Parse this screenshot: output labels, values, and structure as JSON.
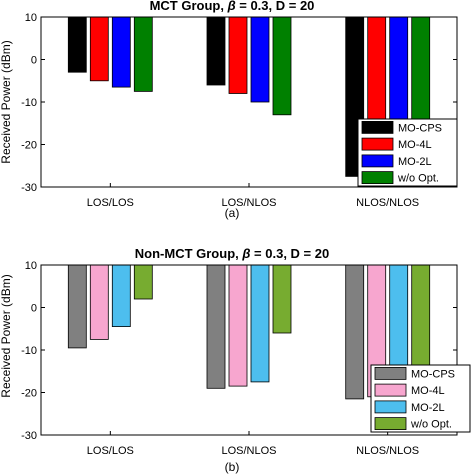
{
  "chart_data": [
    {
      "type": "bar",
      "title": "MCT Group, β = 0.3, D = 20",
      "title_parts": [
        "MCT Group, ",
        "β",
        " = 0.3, D = 20"
      ],
      "caption": "(a)",
      "ylabel": "Received Power (dBm)",
      "xlabel": "",
      "ylim": [
        -30,
        10
      ],
      "yticks": [
        "-30",
        "-20",
        "-10",
        "0",
        "10"
      ],
      "categories": [
        "LOS/LOS",
        "LOS/NLOS",
        "NLOS/NLOS"
      ],
      "baseline": 10,
      "legend_position": "right",
      "grid": false,
      "series": [
        {
          "name": "MO-CPS",
          "color": "#000000",
          "values": [
            -3,
            -6,
            -27.5
          ]
        },
        {
          "name": "MO-4L",
          "color": "#ff0000",
          "values": [
            -5,
            -8,
            -27.7
          ]
        },
        {
          "name": "MO-2L",
          "color": "#0000ff",
          "values": [
            -6.5,
            -10,
            -28.2
          ]
        },
        {
          "name": "w/o Opt.",
          "color": "#008000",
          "values": [
            -7.5,
            -13,
            -29
          ]
        }
      ]
    },
    {
      "type": "bar",
      "title": "Non-MCT Group, β = 0.3, D = 20",
      "title_parts": [
        "Non-MCT Group, ",
        "β",
        " = 0.3, D = 20"
      ],
      "caption": "(b)",
      "ylabel": "Received Power (dBm)",
      "xlabel": "",
      "ylim": [
        -30,
        10
      ],
      "yticks": [
        "-30",
        "-20",
        "-10",
        "0",
        "10"
      ],
      "categories": [
        "LOS/LOS",
        "LOS/NLOS",
        "NLOS/NLOS"
      ],
      "baseline": 10,
      "legend_position": "bottom-right",
      "grid": false,
      "series": [
        {
          "name": "MO-CPS",
          "color": "#808080",
          "values": [
            -9.5,
            -19,
            -21.5
          ]
        },
        {
          "name": "MO-4L",
          "color": "#f7a6cf",
          "values": [
            -7.5,
            -18.5,
            -21
          ]
        },
        {
          "name": "MO-2L",
          "color": "#4dbeee",
          "values": [
            -4.5,
            -17.5,
            -19.5
          ]
        },
        {
          "name": "w/o Opt.",
          "color": "#77ac30",
          "values": [
            2,
            -6,
            -18
          ]
        }
      ]
    }
  ]
}
